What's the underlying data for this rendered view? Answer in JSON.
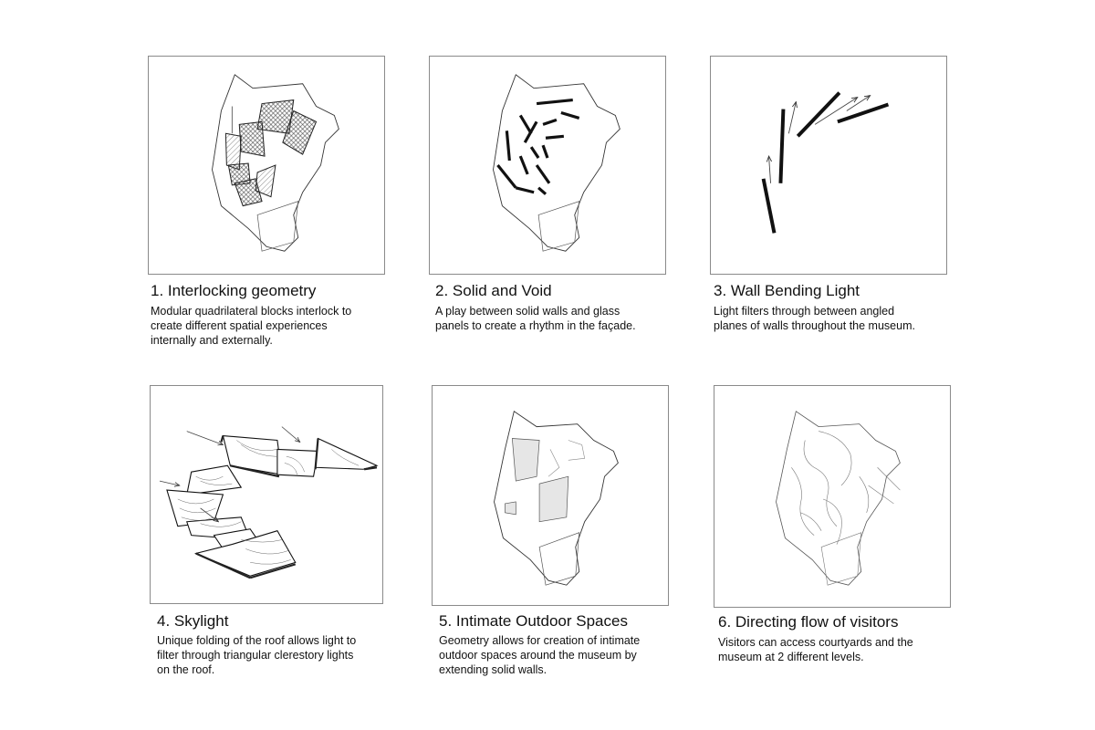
{
  "panels": [
    {
      "title": "1. Interlocking geometry",
      "lines": [
        "Modular quadrilateral blocks interlock to",
        "create different spatial experiences",
        "internally and externally."
      ]
    },
    {
      "title": "2. Solid and Void",
      "lines": [
        "A play between solid walls and glass",
        "panels to create a rhythm in the façade."
      ]
    },
    {
      "title": "3. Wall Bending Light",
      "lines": [
        "Light filters through between angled",
        "planes of walls throughout the museum."
      ]
    },
    {
      "title": "4. Skylight",
      "lines": [
        "Unique folding of the roof allows light to",
        "filter through triangular clerestory lights",
        "on the roof."
      ]
    },
    {
      "title": "5. Intimate Outdoor Spaces",
      "lines": [
        "Geometry allows for creation of intimate",
        "outdoor spaces around the museum by",
        "extending solid walls."
      ]
    },
    {
      "title": "6. Directing flow of visitors",
      "lines": [
        "Visitors can access courtyards and the",
        "museum at 2 different levels."
      ]
    }
  ]
}
